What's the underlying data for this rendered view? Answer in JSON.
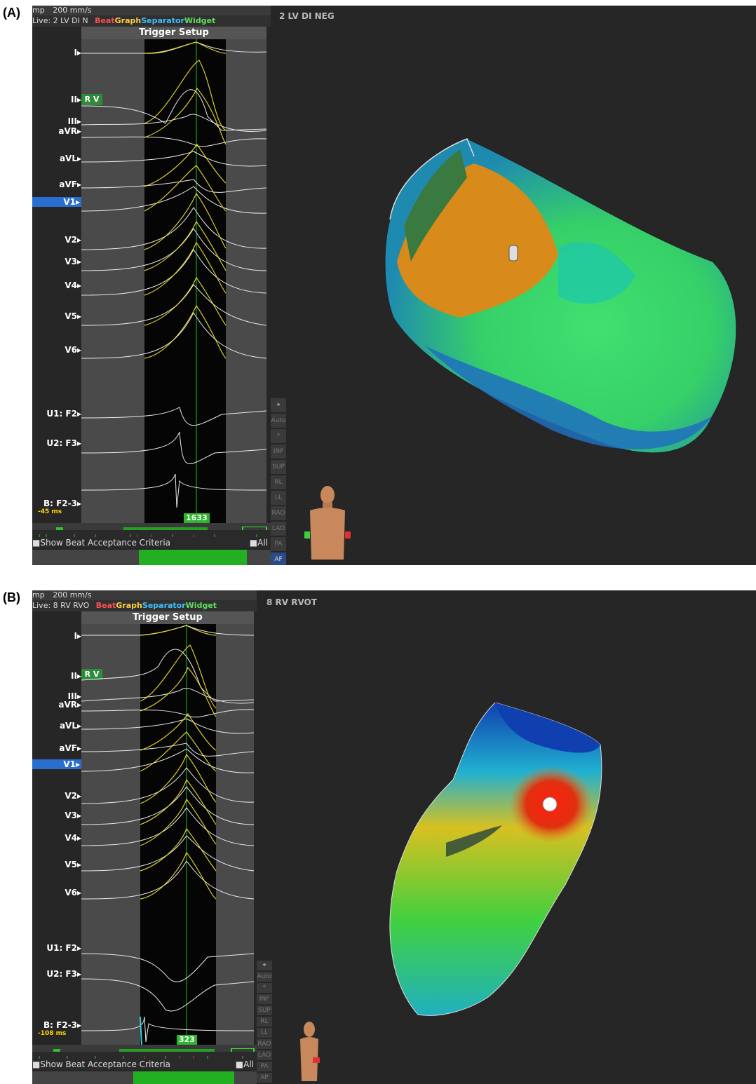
{
  "panels": [
    {
      "label": "(A)",
      "toolbar": {
        "mode": "mp",
        "speed": "200 mm/s"
      },
      "live": {
        "prefix": "Live:",
        "map": "2 LV",
        "code": "DI N"
      },
      "widget_parts": [
        "Beat",
        "Graph",
        "Separator",
        "Widget"
      ],
      "trigger": "Trigger Setup",
      "rv_badge": "R V",
      "leads": [
        "I",
        "II",
        "III",
        "aVR",
        "aVL",
        "aVF",
        "V1",
        "V2",
        "V3",
        "V4",
        "V5",
        "V6",
        "U1: F2",
        "U2: F3",
        "B: F2-3"
      ],
      "selected_lead": "V1",
      "ms_value": "-45 ms",
      "beat_count": "1633",
      "show_beat": "Show Beat Acceptance Criteria",
      "all_label": "All",
      "side_buttons": [
        "Auto",
        "INF",
        "SUP",
        "RL",
        "LL",
        "RAO",
        "LAO",
        "PA",
        "AF"
      ],
      "map_title": "2 LV DI NEG",
      "map_colors": {
        "orange": "#d88a1a",
        "green": "#3fd060",
        "cyan": "#1fc8a8",
        "blue": "#1f70c0"
      }
    },
    {
      "label": "(B)",
      "toolbar": {
        "mode": "mp",
        "speed": "200 mm/s"
      },
      "live": {
        "prefix": "Live:",
        "map": "8 RV",
        "code": "RVO"
      },
      "widget_parts": [
        "Beat",
        "Graph",
        "Separator",
        "Widget"
      ],
      "trigger": "Trigger Setup",
      "rv_badge": "R V",
      "leads": [
        "I",
        "II",
        "III",
        "aVR",
        "aVL",
        "aVF",
        "V1",
        "V2",
        "V3",
        "V4",
        "V5",
        "V6",
        "U1: F2",
        "U2: F3",
        "B: F2-3"
      ],
      "selected_lead": "V1",
      "ms_value": "-108 ms",
      "beat_count": "323",
      "show_beat": "Show Beat Acceptance Criteria",
      "all_label": "All",
      "side_buttons": [
        "Auto",
        "INF",
        "SUP",
        "RL",
        "LL",
        "RAO",
        "LAO",
        "PA",
        "AP"
      ],
      "map_title": "8 RV RVOT",
      "map_colors": {
        "red": "#e02010",
        "yellow": "#d8c020",
        "green": "#40d040",
        "blue": "#1040b0"
      }
    }
  ]
}
